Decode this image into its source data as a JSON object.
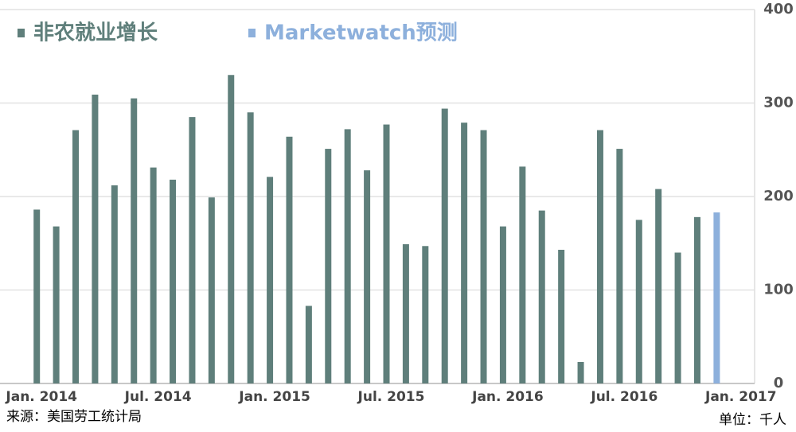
{
  "chart_data": {
    "type": "bar",
    "categories": [
      "Jan. 2014",
      null,
      null,
      null,
      null,
      null,
      "Jul. 2014",
      null,
      null,
      null,
      null,
      null,
      "Jan. 2015",
      null,
      null,
      null,
      null,
      null,
      "Jul. 2015",
      null,
      null,
      null,
      null,
      null,
      "Jan. 2016",
      null,
      null,
      null,
      null,
      null,
      "Jul. 2016",
      null,
      null,
      null,
      null,
      null,
      "Jan. 2017"
    ],
    "series": [
      {
        "name": "非农就业增长",
        "color": "#5f7f7b",
        "values": [
          186,
          168,
          271,
          309,
          212,
          305,
          231,
          218,
          285,
          199,
          330,
          290,
          221,
          264,
          83,
          251,
          272,
          228,
          277,
          149,
          147,
          294,
          279,
          271,
          168,
          232,
          185,
          143,
          23,
          271,
          251,
          175,
          208,
          140,
          178,
          null,
          null
        ]
      },
      {
        "name": "Marketwatch预测",
        "color": "#8db0dc",
        "values": [
          null,
          null,
          null,
          null,
          null,
          null,
          null,
          null,
          null,
          null,
          null,
          null,
          null,
          null,
          null,
          null,
          null,
          null,
          null,
          null,
          null,
          null,
          null,
          null,
          null,
          null,
          null,
          null,
          null,
          null,
          null,
          null,
          null,
          null,
          null,
          183,
          null
        ]
      }
    ],
    "ylim": [
      0,
      400
    ],
    "yticks": [
      0,
      100,
      200,
      300,
      400
    ],
    "grid": true,
    "legend": "top-left",
    "source": "来源：美国劳工统计局",
    "unit": "单位：千人"
  }
}
